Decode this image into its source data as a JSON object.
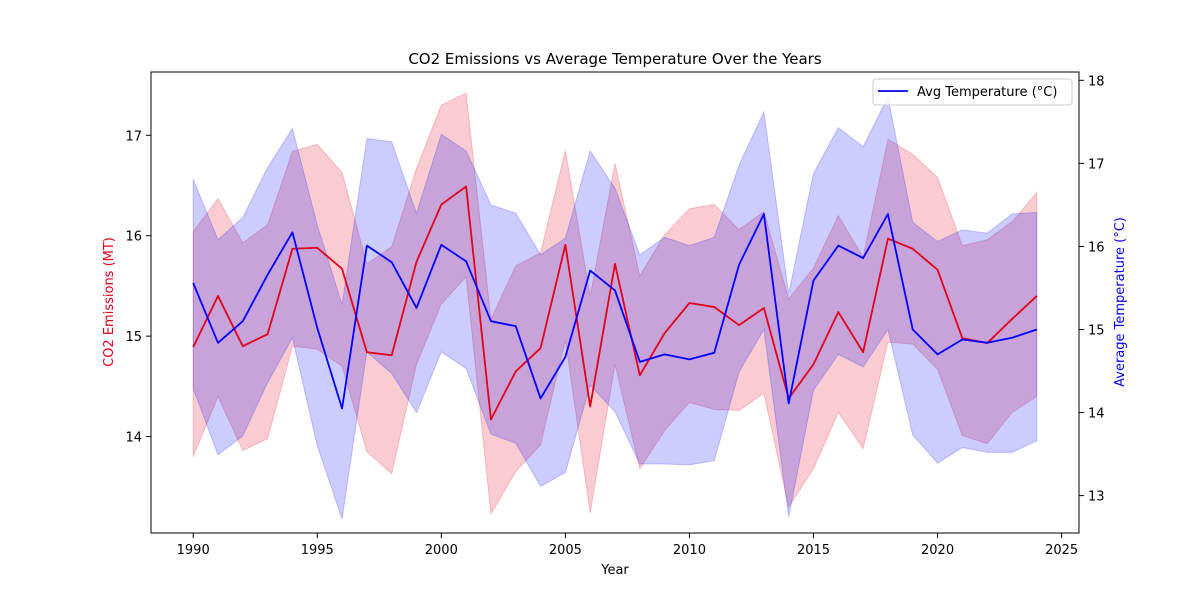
{
  "chart_data": {
    "type": "line",
    "title": "CO2 Emissions vs Average Temperature Over the Years",
    "xlabel": "Year",
    "ylabel_left": "CO2 Emissions (MT)",
    "ylabel_right": "Average Temperature (°C)",
    "x": [
      1990,
      1991,
      1992,
      1993,
      1994,
      1995,
      1996,
      1997,
      1998,
      1999,
      2000,
      2001,
      2002,
      2003,
      2004,
      2005,
      2006,
      2007,
      2008,
      2009,
      2010,
      2011,
      2012,
      2013,
      2014,
      2015,
      2016,
      2017,
      2018,
      2019,
      2020,
      2021,
      2022,
      2023,
      2024
    ],
    "xlim": [
      1988.3,
      2025.7
    ],
    "xticks": [
      1990,
      1995,
      2000,
      2005,
      2010,
      2015,
      2020,
      2025
    ],
    "ylim_left": [
      13.04,
      17.63
    ],
    "yticks_left": [
      14,
      15,
      16,
      17
    ],
    "ylim_right": [
      12.55,
      18.1
    ],
    "yticks_right": [
      13,
      14,
      15,
      16,
      17,
      18
    ],
    "grid": false,
    "legend_position": "top-right",
    "legend_entries": [
      "Avg Temperature (°C)"
    ],
    "series": [
      {
        "name": "CO2 Emissions (MT)",
        "axis": "left",
        "color": "#e0001a",
        "values": [
          14.89,
          15.4,
          14.9,
          15.02,
          15.87,
          15.88,
          15.67,
          14.84,
          14.81,
          15.74,
          16.31,
          16.49,
          14.17,
          14.65,
          14.88,
          15.91,
          14.3,
          15.72,
          14.61,
          15.03,
          15.33,
          15.29,
          15.11,
          15.28,
          14.38,
          14.72,
          15.24,
          14.84,
          15.97,
          15.87,
          15.66,
          14.98,
          14.93,
          15.17,
          15.4
        ],
        "band_upper": [
          16.04,
          16.37,
          15.93,
          16.11,
          16.84,
          16.91,
          16.63,
          15.72,
          15.89,
          16.67,
          17.3,
          17.42,
          15.17,
          15.7,
          15.83,
          16.85,
          15.4,
          16.72,
          15.6,
          16.01,
          16.27,
          16.31,
          16.06,
          16.24,
          15.37,
          15.68,
          16.2,
          15.79,
          16.96,
          16.81,
          16.58,
          15.9,
          15.96,
          16.14,
          16.43
        ],
        "band_lower": [
          13.8,
          14.4,
          13.86,
          13.98,
          14.9,
          14.87,
          14.7,
          13.85,
          13.63,
          14.72,
          15.32,
          15.59,
          13.23,
          13.65,
          13.92,
          14.96,
          13.24,
          14.72,
          13.68,
          14.06,
          14.34,
          14.27,
          14.26,
          14.43,
          13.3,
          13.68,
          14.24,
          13.88,
          14.94,
          14.92,
          14.67,
          14.01,
          13.93,
          14.24,
          14.4
        ]
      },
      {
        "name": "Avg Temperature (°C)",
        "axis": "right",
        "color": "#0000ff",
        "values": [
          15.56,
          14.84,
          15.1,
          15.66,
          16.17,
          15.02,
          14.05,
          16.01,
          15.81,
          15.26,
          16.02,
          15.82,
          15.1,
          15.04,
          14.17,
          14.67,
          15.71,
          15.47,
          14.61,
          14.7,
          14.64,
          14.72,
          15.78,
          16.39,
          14.11,
          15.59,
          16.01,
          15.86,
          16.39,
          15.0,
          14.7,
          14.88,
          14.84,
          14.9,
          15.0
        ],
        "band_upper": [
          16.81,
          16.08,
          16.35,
          16.95,
          17.42,
          16.26,
          15.3,
          17.3,
          17.26,
          16.4,
          17.35,
          17.15,
          16.5,
          16.4,
          15.9,
          16.1,
          17.15,
          16.7,
          15.9,
          16.11,
          16.01,
          16.11,
          16.98,
          17.62,
          15.43,
          16.88,
          17.43,
          17.2,
          17.8,
          16.29,
          16.06,
          16.2,
          16.16,
          16.39,
          16.41
        ],
        "band_lower": [
          14.29,
          13.49,
          13.72,
          14.36,
          14.9,
          13.6,
          12.72,
          14.73,
          14.47,
          14.0,
          14.73,
          14.53,
          13.74,
          13.63,
          13.11,
          13.28,
          14.33,
          14.01,
          13.38,
          13.38,
          13.37,
          13.42,
          14.49,
          15.0,
          12.74,
          14.27,
          14.7,
          14.55,
          15.0,
          13.73,
          13.39,
          13.58,
          13.52,
          13.52,
          13.66
        ]
      }
    ]
  }
}
